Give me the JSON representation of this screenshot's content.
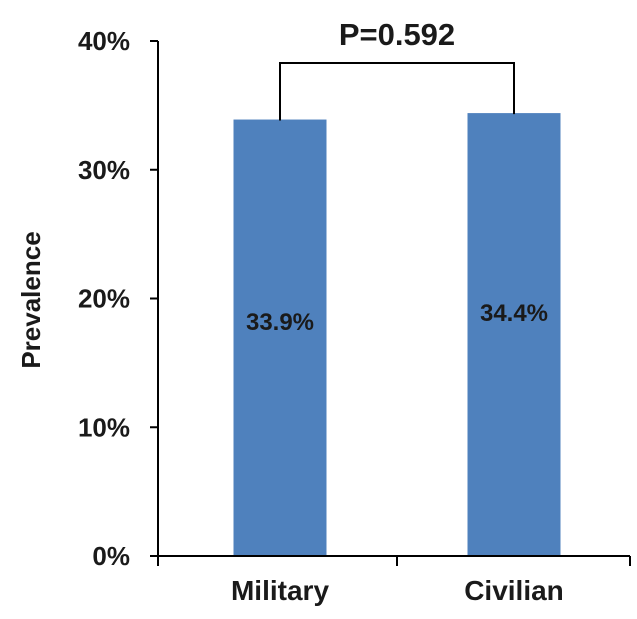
{
  "chart_data": {
    "type": "bar",
    "categories": [
      "Military",
      "Civilian"
    ],
    "values": [
      33.9,
      34.4
    ],
    "data_labels": [
      "33.9%",
      "34.4%"
    ],
    "title": "",
    "xlabel": "",
    "ylabel": "Prevalence",
    "ylim": [
      0,
      40
    ],
    "yticks": [
      0,
      10,
      20,
      30,
      40
    ],
    "ytick_labels": [
      "0%",
      "10%",
      "20%",
      "30%",
      "40%"
    ],
    "grid": false,
    "legend": "none",
    "bar_color": "#4F81BD",
    "annotation": {
      "text": "P=0.592",
      "type": "significance-bracket",
      "between": [
        "Military",
        "Civilian"
      ]
    }
  }
}
